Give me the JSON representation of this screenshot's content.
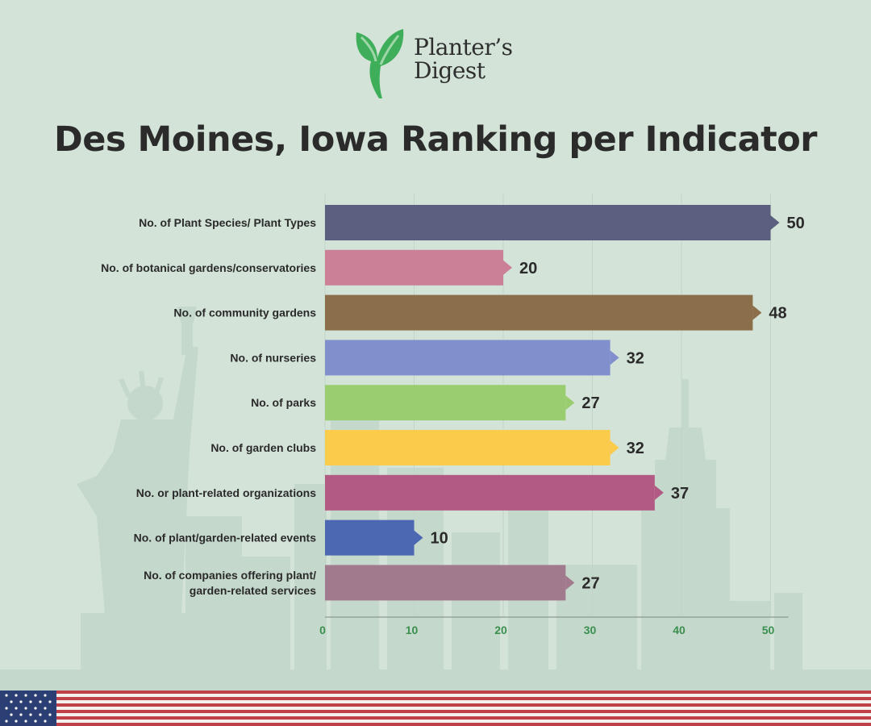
{
  "brand": {
    "line1": "Planter’s",
    "line2": "Digest",
    "leaf_icon": "leaf-logo-icon",
    "leaf_color": "#3fae5a"
  },
  "title": "Des Moines, Iowa Ranking per Indicator",
  "flag_icon": "us-flag-icon",
  "chart_data": {
    "type": "bar",
    "orientation": "horizontal",
    "title": "Des Moines, Iowa Ranking per Indicator",
    "xlabel": "",
    "ylabel": "",
    "xlim": [
      0,
      52
    ],
    "xticks": [
      0,
      10,
      20,
      30,
      40,
      50
    ],
    "grid": true,
    "categories": [
      [
        "No. of Plant Species/ Plant Types"
      ],
      [
        "No. of botanical gardens/conservatories"
      ],
      [
        "No. of community gardens"
      ],
      [
        "No. of nurseries"
      ],
      [
        "No. of parks"
      ],
      [
        "No. of garden clubs"
      ],
      [
        "No. or plant-related organizations"
      ],
      [
        "No. of plant/garden-related events"
      ],
      [
        "No. of companies offering plant/",
        "garden-related services"
      ]
    ],
    "values": [
      50,
      20,
      48,
      32,
      27,
      32,
      37,
      10,
      27
    ],
    "colors": [
      "#5c6080",
      "#cc8098",
      "#8a6f4a",
      "#8190cc",
      "#9acd6f",
      "#fbcb4c",
      "#b35a84",
      "#4c68b2",
      "#a27a8e"
    ],
    "tick_color": "#3a8f4f"
  }
}
